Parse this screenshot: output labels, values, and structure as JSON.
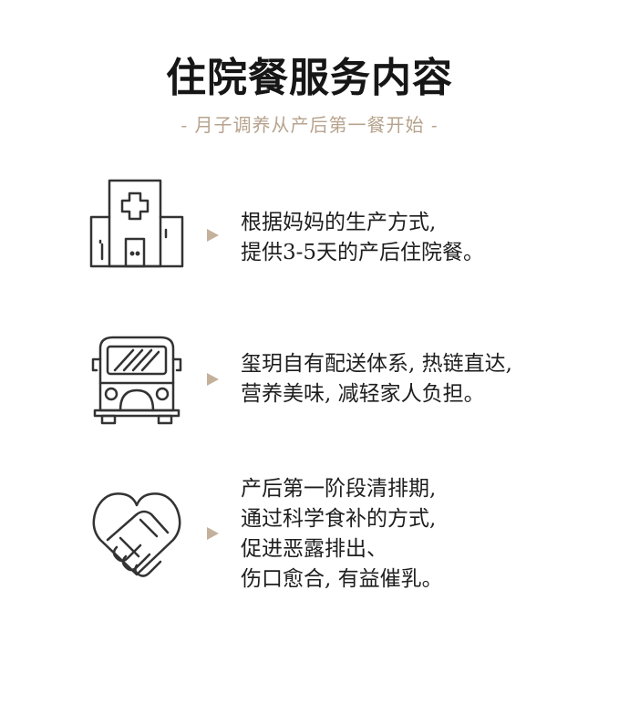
{
  "header": {
    "title": "住院餐服务内容",
    "subtitle": "- 月子调养从产后第一餐开始 -"
  },
  "colors": {
    "accent": "#c3b19b",
    "subtitle": "#b7a38d",
    "text": "#1e1e1e",
    "icon_stroke": "#333333"
  },
  "items": [
    {
      "icon": "hospital-icon",
      "lines": [
        "根据妈妈的生产方式,",
        "提供3-5天的产后住院餐。"
      ]
    },
    {
      "icon": "bus-icon",
      "lines": [
        "玺玥自有配送体系, 热链直达,",
        "营养美味, 减轻家人负担。"
      ]
    },
    {
      "icon": "handshake-heart-icon",
      "lines": [
        "产后第一阶段清排期,",
        "通过科学食补的方式,",
        "促进恶露排出、",
        "伤口愈合, 有益催乳。"
      ]
    }
  ]
}
